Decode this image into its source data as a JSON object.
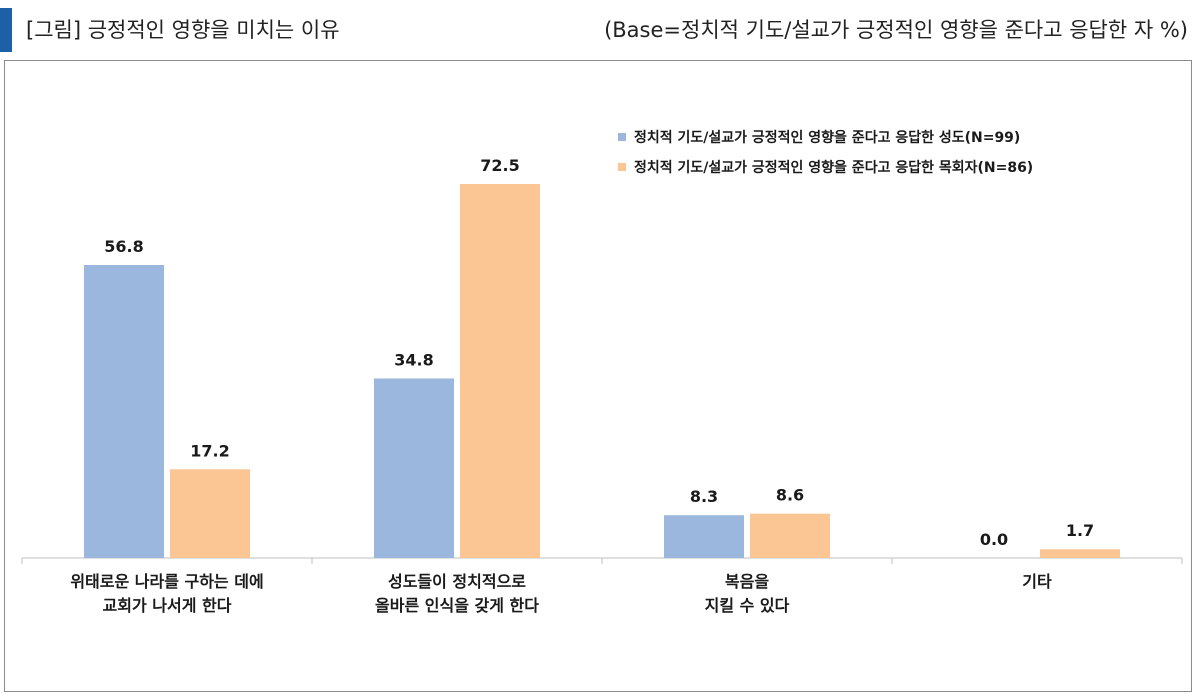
{
  "header": {
    "title": "[그림] 긍정적인 영향을 미치는 이유",
    "base_note": "(Base=정치적 기도/설교가 긍정적인 영향을 준다고 응답한 자 %)"
  },
  "colors": {
    "series1": "#9bb7dd",
    "series2": "#fbc594",
    "accent": "#1f5fa8"
  },
  "chart_data": {
    "type": "bar",
    "categories": [
      [
        "위태로운 나라를 구하는 데에",
        "교회가 나서게 한다"
      ],
      [
        "성도들이 정치적으로",
        "올바른 인식을 갖게 한다"
      ],
      [
        "복음을",
        "지킬 수 있다"
      ],
      [
        "기타"
      ]
    ],
    "series": [
      {
        "name": "정치적 기도/설교가 긍정적인 영향을 준다고 응답한 성도(N=99)",
        "values": [
          56.8,
          34.8,
          8.3,
          0.0
        ],
        "labels": [
          "56.8",
          "34.8",
          "8.3",
          "0.0"
        ]
      },
      {
        "name": "정치적 기도/설교가 긍정적인 영향을 준다고 응답한 목회자(N=86)",
        "values": [
          17.2,
          72.5,
          8.6,
          1.7
        ],
        "labels": [
          "17.2",
          "72.5",
          "8.6",
          "1.7"
        ]
      }
    ],
    "ylim": [
      0,
      80
    ],
    "grid": false,
    "legend_position": "top-right"
  }
}
